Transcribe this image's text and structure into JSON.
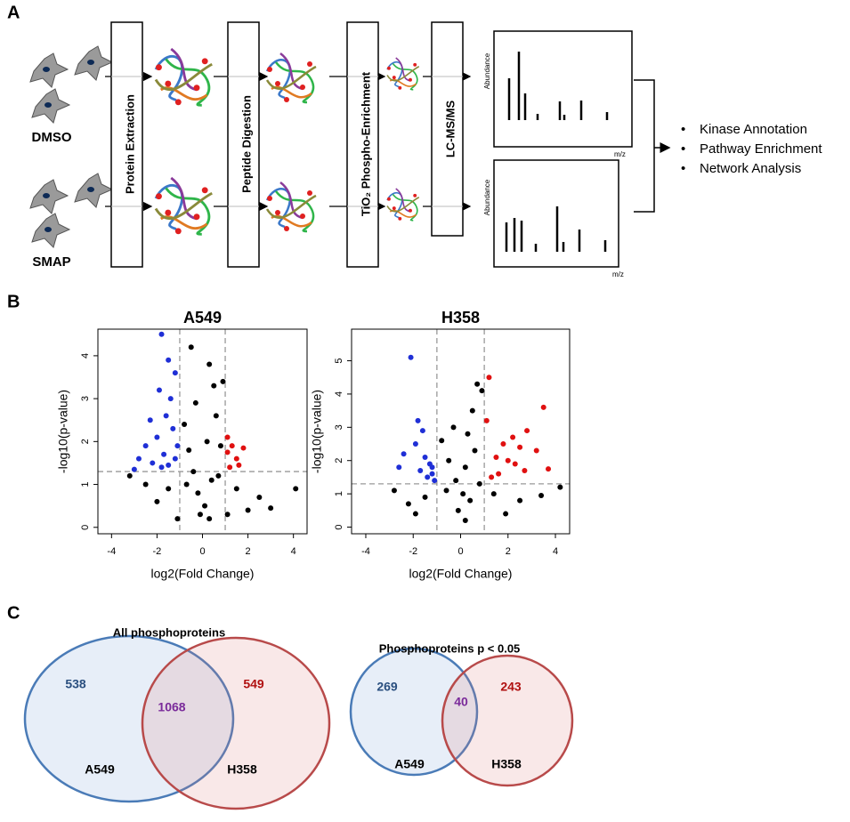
{
  "panel_labels": [
    "A",
    "B",
    "C"
  ],
  "panel_a": {
    "conditions": [
      "DMSO",
      "SMAP"
    ],
    "steps": [
      "Protein Extraction",
      "Peptide Digestion",
      "TiO₂ Phospho-Enrichment",
      "LC-MS/MS"
    ],
    "spectrum_y_label": "Abundance",
    "spectrum_x_label": "m/z",
    "analyses": [
      "Kinase Annotation",
      "Pathway Enrichment",
      "Network Analysis"
    ]
  },
  "chart_data": [
    {
      "type": "scatter",
      "title": "A549",
      "x_label": "log2(Fold Change)",
      "y_label": "-log10(p-value)",
      "xlim": [
        -4.6,
        4.6
      ],
      "ylim": [
        -0.15,
        4.62
      ],
      "xticks": [
        -4,
        -2,
        0,
        2,
        4
      ],
      "yticks": [
        0,
        1,
        2,
        3,
        4
      ],
      "vlines": [
        -1,
        1
      ],
      "hline": 1.3,
      "series": [
        {
          "color": "#000000",
          "x": [
            -0.5,
            0.3,
            0.5,
            0.9,
            -0.3,
            0.6,
            -0.8,
            0.2,
            -0.6,
            0.8,
            -0.4,
            0.4,
            -0.2,
            0.1,
            -0.1,
            0.3,
            -0.7,
            0.7,
            -1.5,
            1.5,
            -2.5,
            2.5,
            3.0,
            4.1,
            -3.2,
            2.0,
            -2.0,
            1.1,
            -1.1
          ],
          "y": [
            4.2,
            3.8,
            3.3,
            3.4,
            2.9,
            2.6,
            2.4,
            2.0,
            1.8,
            1.9,
            1.3,
            1.1,
            0.8,
            0.5,
            0.3,
            0.2,
            1.0,
            1.2,
            0.9,
            0.9,
            1.0,
            0.7,
            0.45,
            0.9,
            1.2,
            0.4,
            0.6,
            0.3,
            0.2
          ]
        },
        {
          "color": "#1f2fd6",
          "x": [
            -1.8,
            -1.5,
            -1.2,
            -1.9,
            -1.4,
            -2.3,
            -1.6,
            -2.0,
            -1.3,
            -2.5,
            -1.7,
            -3.0,
            -2.2,
            -1.5,
            -1.1,
            -1.2,
            -2.8,
            -1.8
          ],
          "y": [
            4.5,
            3.9,
            3.6,
            3.2,
            3.0,
            2.5,
            2.6,
            2.1,
            2.3,
            1.9,
            1.7,
            1.35,
            1.5,
            1.45,
            1.9,
            1.6,
            1.6,
            1.4
          ]
        },
        {
          "color": "#e01010",
          "x": [
            1.1,
            1.3,
            1.8,
            1.5,
            1.2,
            1.6,
            1.1
          ],
          "y": [
            2.1,
            1.9,
            1.85,
            1.6,
            1.4,
            1.45,
            1.75
          ]
        }
      ]
    },
    {
      "type": "scatter",
      "title": "H358",
      "x_label": "log2(Fold Change)",
      "y_label": "-log10(p-value)",
      "xlim": [
        -4.6,
        4.6
      ],
      "ylim": [
        -0.2,
        5.95
      ],
      "xticks": [
        -4,
        -2,
        0,
        2,
        4
      ],
      "yticks": [
        0,
        1,
        2,
        3,
        4,
        5
      ],
      "vlines": [
        -1,
        1
      ],
      "hline": 1.3,
      "series": [
        {
          "color": "#000000",
          "x": [
            0.7,
            0.9,
            0.5,
            -0.3,
            0.3,
            -0.8,
            0.6,
            -0.5,
            0.2,
            -0.2,
            0.1,
            -0.1,
            0.2,
            0.4,
            -0.6,
            -1.5,
            1.4,
            -2.2,
            2.5,
            3.4,
            4.2,
            -2.8,
            1.9,
            -1.9,
            0.8
          ],
          "y": [
            4.3,
            4.1,
            3.5,
            3.0,
            2.8,
            2.6,
            2.3,
            2.0,
            1.8,
            1.4,
            1.0,
            0.5,
            0.2,
            0.8,
            1.1,
            0.9,
            1.0,
            0.7,
            0.8,
            0.95,
            1.2,
            1.1,
            0.4,
            0.4,
            1.3
          ]
        },
        {
          "color": "#1f2fd6",
          "x": [
            -2.1,
            -1.8,
            -1.6,
            -2.4,
            -1.5,
            -1.9,
            -1.3,
            -1.2,
            -1.4,
            -1.1,
            -2.6,
            -1.7,
            -1.2
          ],
          "y": [
            5.1,
            3.2,
            2.9,
            2.2,
            2.1,
            2.5,
            1.9,
            1.6,
            1.5,
            1.4,
            1.8,
            1.7,
            1.8
          ]
        },
        {
          "color": "#e01010",
          "x": [
            1.2,
            1.1,
            3.5,
            2.8,
            2.2,
            1.8,
            2.5,
            3.2,
            1.5,
            2.0,
            2.7,
            3.7,
            1.3,
            2.3,
            1.6
          ],
          "y": [
            4.5,
            3.2,
            3.6,
            2.9,
            2.7,
            2.5,
            2.4,
            2.3,
            2.1,
            2.0,
            1.7,
            1.75,
            1.5,
            1.9,
            1.6
          ]
        }
      ]
    }
  ],
  "panel_c": {
    "venns": [
      {
        "title": "All phosphoproteins",
        "left_count": "538",
        "overlap_count": "1068",
        "right_count": "549",
        "left_label": "A549",
        "right_label": "H358"
      },
      {
        "title": "Phosphoproteins p < 0.05",
        "left_count": "269",
        "overlap_count": "40",
        "right_count": "243",
        "left_label": "A549",
        "right_label": "H358"
      }
    ]
  }
}
